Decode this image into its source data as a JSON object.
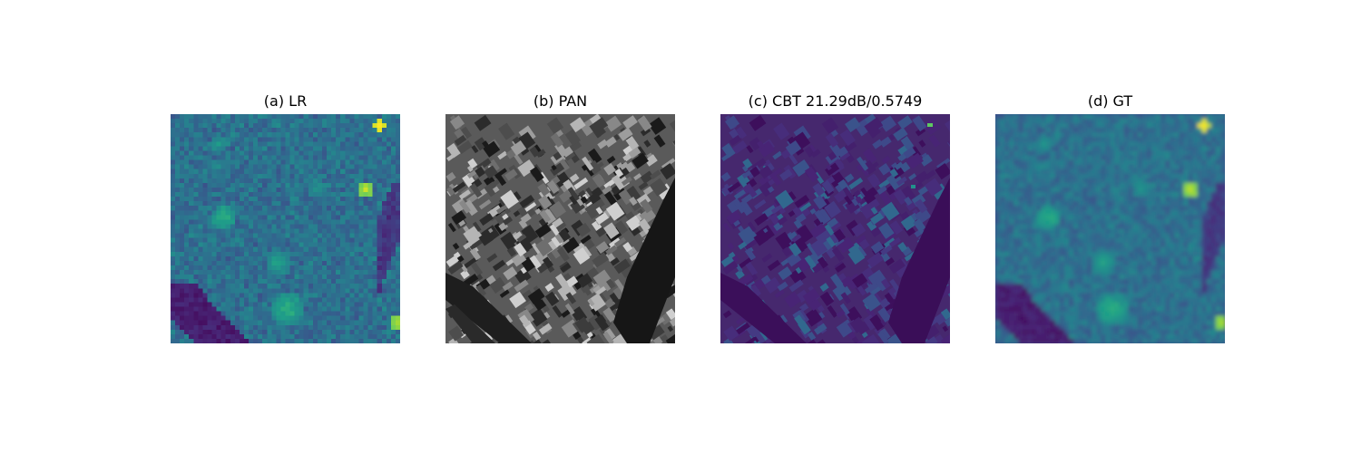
{
  "figure": {
    "panels": [
      {
        "title": "(a) LR",
        "image": "lr-satellite-image"
      },
      {
        "title": "(b) PAN",
        "image": "pan-satellite-image"
      },
      {
        "title": "(c) CBT 21.29dB/0.5749",
        "image": "cbt-satellite-image"
      },
      {
        "title": "(d) GT",
        "image": "gt-satellite-image"
      }
    ]
  },
  "colors": {
    "viridis_dark": "#440154",
    "viridis_blue": "#3b528b",
    "viridis_teal": "#21918c",
    "viridis_green": "#5ec962",
    "viridis_yellow": "#fde725"
  }
}
